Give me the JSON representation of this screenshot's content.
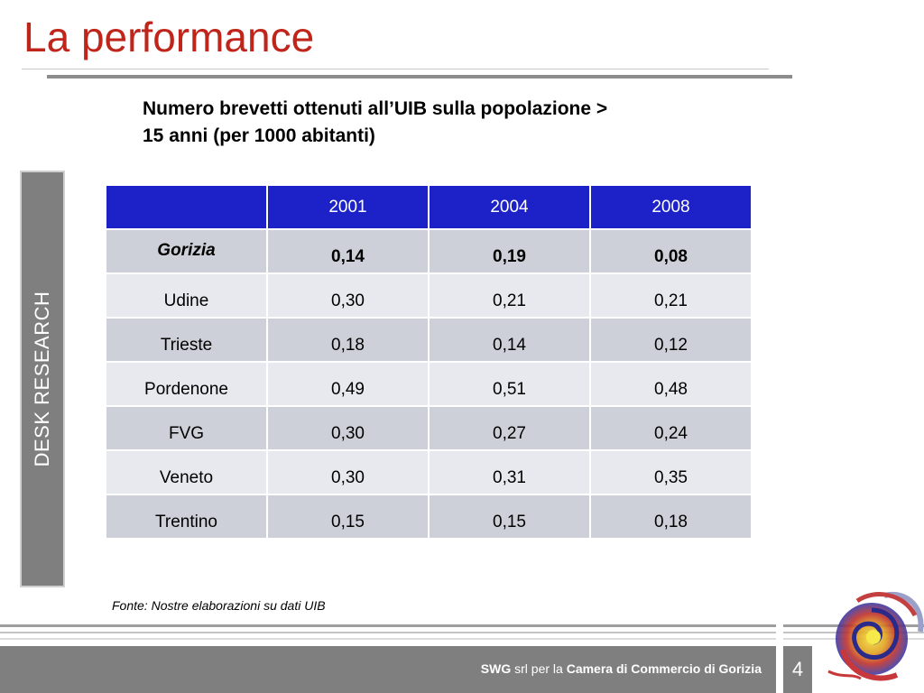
{
  "slide": {
    "title": "La performance",
    "subtitle_line1": "Numero brevetti ottenuti all’UIB sulla popolazione >",
    "subtitle_line2": "15 anni (per 1000 abitanti)",
    "side_label": "DESK RESEARCH",
    "source": "Fonte: Nostre elaborazioni su dati UIB",
    "page_number": "4"
  },
  "footer": {
    "company": "SWG",
    "middle": " srl per la ",
    "client": "Camera di Commercio di Gorizia"
  },
  "table": {
    "headers": [
      "",
      "2001",
      "2004",
      "2008"
    ],
    "rows": [
      {
        "city": "Gorizia",
        "v2001": "0,14",
        "v2004": "0,19",
        "v2008": "0,08"
      },
      {
        "city": "Udine",
        "v2001": "0,30",
        "v2004": "0,21",
        "v2008": "0,21"
      },
      {
        "city": "Trieste",
        "v2001": "0,18",
        "v2004": "0,14",
        "v2008": "0,12"
      },
      {
        "city": "Pordenone",
        "v2001": "0,49",
        "v2004": "0,51",
        "v2008": "0,48"
      },
      {
        "city": "FVG",
        "v2001": "0,30",
        "v2004": "0,27",
        "v2008": "0,24"
      },
      {
        "city": "Veneto",
        "v2001": "0,30",
        "v2004": "0,31",
        "v2008": "0,35"
      },
      {
        "city": "Trentino",
        "v2001": "0,15",
        "v2004": "0,15",
        "v2008": "0,18"
      }
    ]
  },
  "colors": {
    "title_red": "#c0251c",
    "header_blue": "#1c22c7",
    "row_dark": "#cdd0d8",
    "row_light": "#e8e9ee",
    "panel_gray": "#7f7f7f"
  },
  "icons": {
    "logo": "swirl-logo-icon"
  }
}
